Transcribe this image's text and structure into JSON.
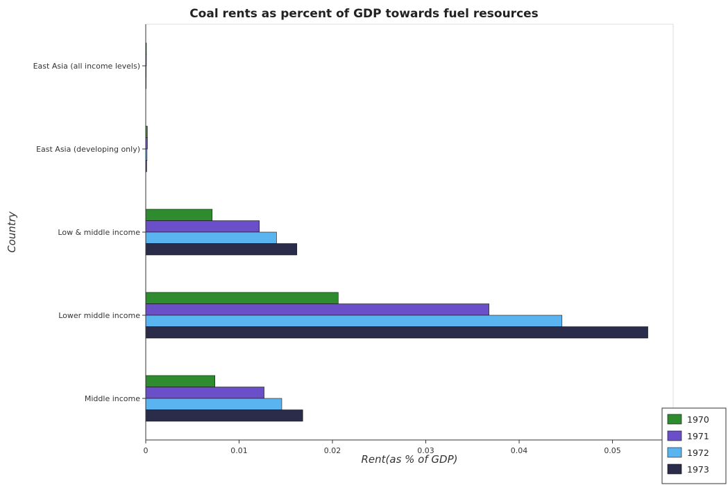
{
  "chart_data": {
    "type": "bar",
    "orientation": "horizontal",
    "title": "Coal rents as percent of GDP towards fuel resources",
    "xlabel": "Rent(as % of GDP)",
    "ylabel": "Country",
    "xlim": [
      0,
      0.0565
    ],
    "xticks": [
      0,
      0.01,
      0.02,
      0.03,
      0.04,
      0.05
    ],
    "xtick_labels": [
      "0",
      "0.01",
      "0.02",
      "0.03",
      "0.04",
      "0.05"
    ],
    "categories": [
      "East Asia (all income levels)",
      "East Asia (developing only)",
      "Low & middle income",
      "Lower middle income",
      "Middle income"
    ],
    "series": [
      {
        "name": "1970",
        "color": "#2e8b2e",
        "values": [
          7e-05,
          0.00017,
          0.00712,
          0.02062,
          0.00741
        ]
      },
      {
        "name": "1971",
        "color": "#6a4fc9",
        "values": [
          7e-05,
          0.00018,
          0.01217,
          0.03677,
          0.01268
        ]
      },
      {
        "name": "1972",
        "color": "#5ab4f0",
        "values": [
          5e-05,
          0.00014,
          0.01401,
          0.04459,
          0.01457
        ]
      },
      {
        "name": "1973",
        "color": "#2b2b4a",
        "values": [
          3e-05,
          0.0001,
          0.01619,
          0.05379,
          0.01682
        ]
      }
    ],
    "legend_position": "bottom-right"
  }
}
